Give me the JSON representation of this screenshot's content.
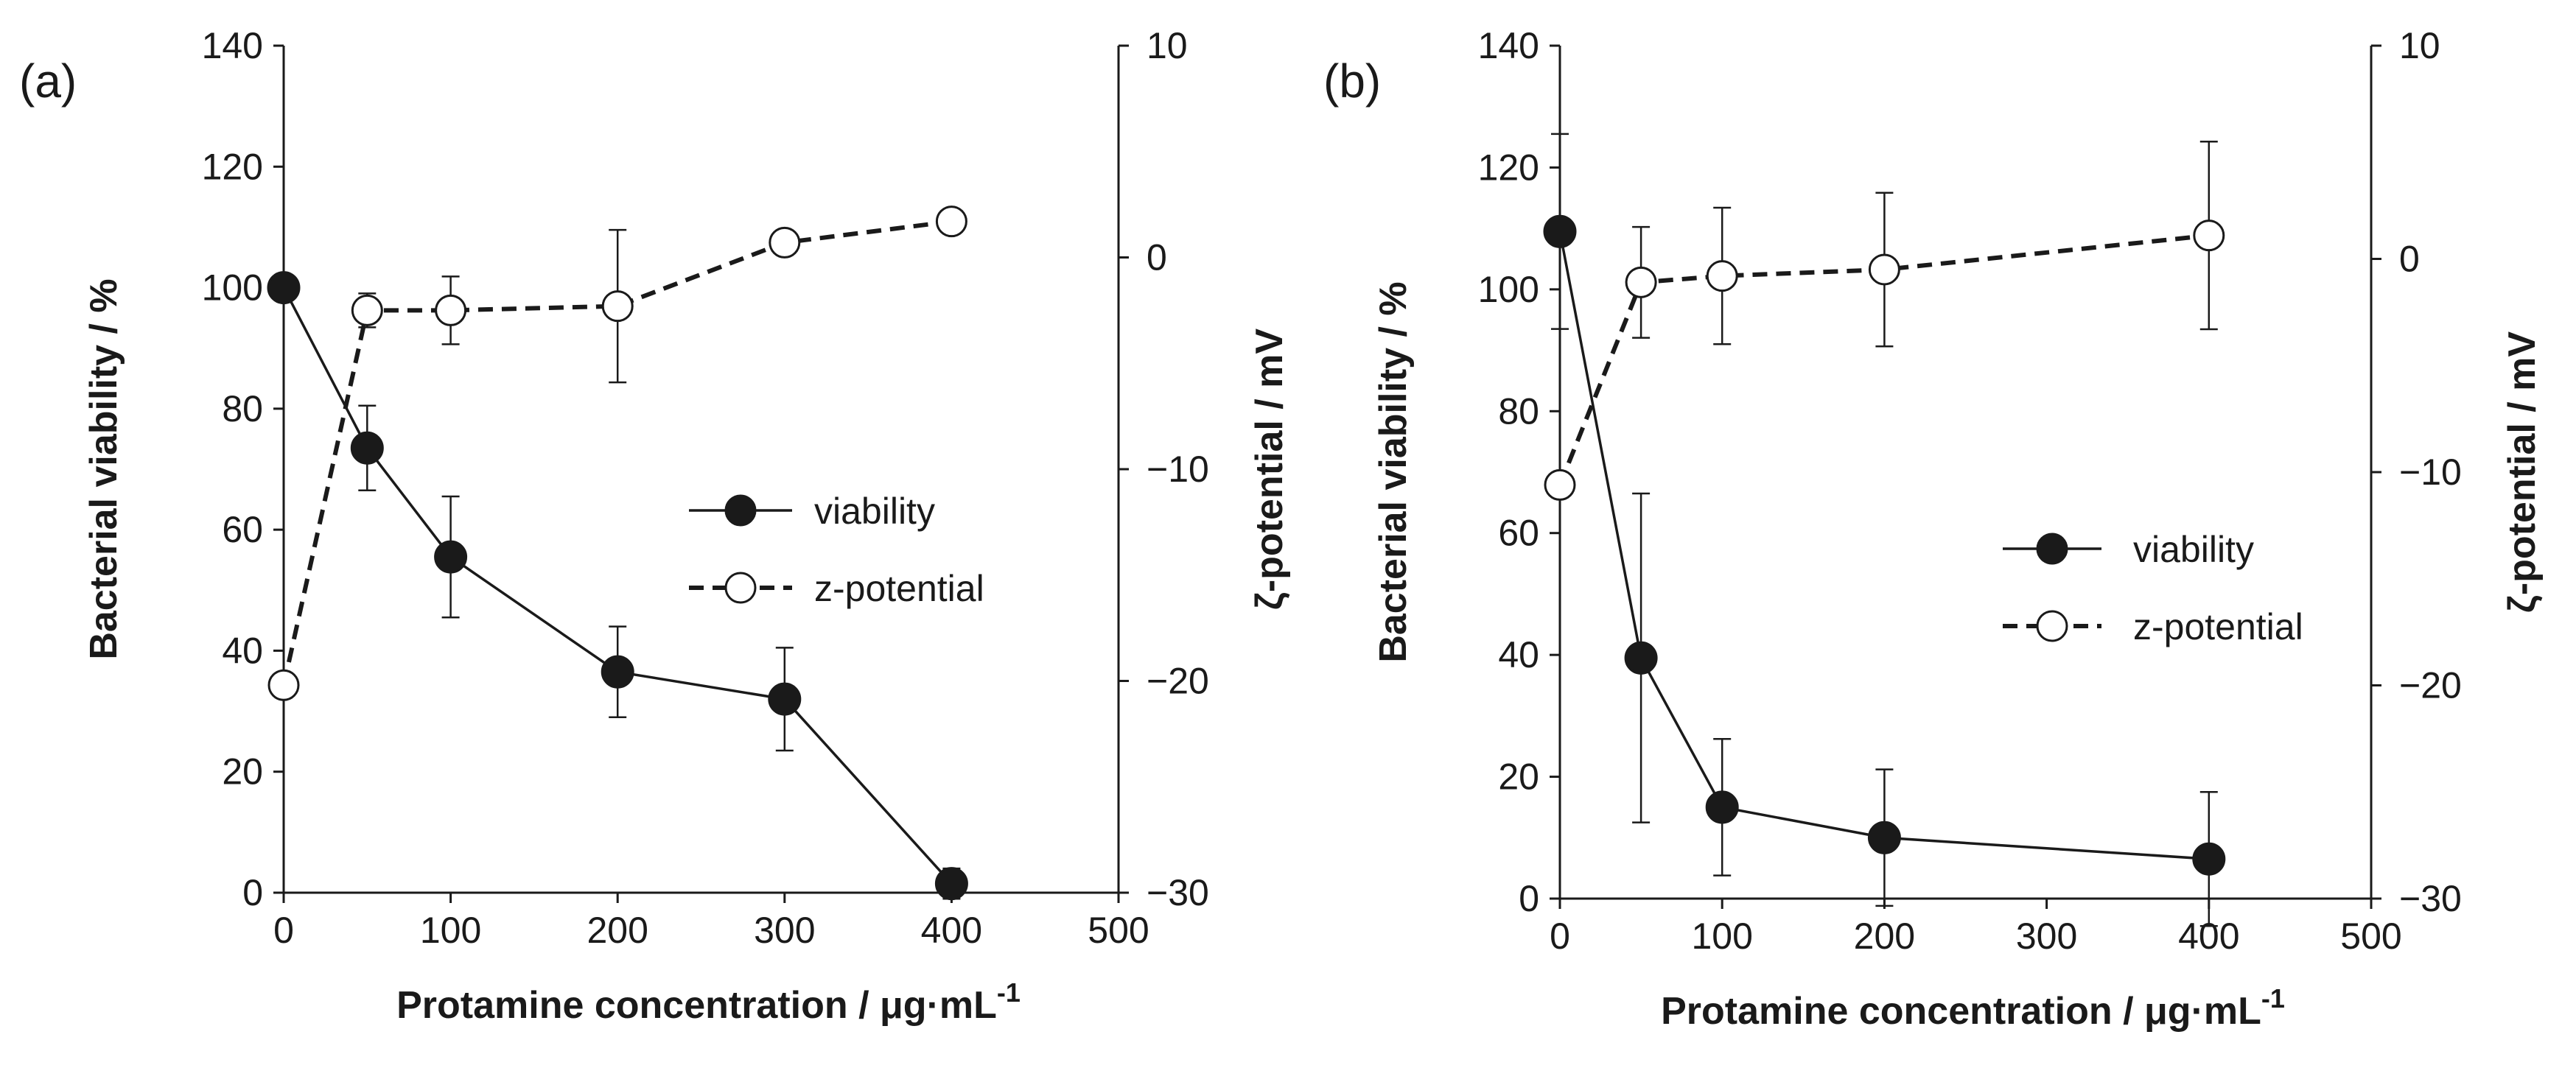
{
  "figure": {
    "background": "#ffffff",
    "ink": "#1a1a1a"
  },
  "chart_data": [
    {
      "type": "line",
      "panel_label": "(a)",
      "xlabel": "Protamine concentration / μg·mL",
      "xlabel_superscript": "-1",
      "ylabel_left": "Bacterial viability / %",
      "ylabel_right": "ζ-potential / mV",
      "xlim": [
        0,
        500
      ],
      "xticks": [
        0,
        100,
        200,
        300,
        400,
        500
      ],
      "ylim_left": [
        0,
        140
      ],
      "yticks_left": [
        0,
        20,
        40,
        60,
        80,
        100,
        120,
        140
      ],
      "ylim_right": [
        -30,
        10
      ],
      "yticks_right": [
        -30,
        -20,
        -10,
        0,
        10
      ],
      "grid": false,
      "legend_position": "center-right",
      "series": [
        {
          "name": "viability",
          "axis": "left",
          "marker": "filled-circle",
          "line": "solid",
          "x": [
            0,
            50,
            100,
            200,
            300,
            400
          ],
          "y": [
            100,
            73.5,
            55.5,
            36.5,
            32,
            1.5
          ],
          "err": [
            0,
            7,
            10,
            7.5,
            8.5,
            2.5
          ]
        },
        {
          "name": "z-potential",
          "axis": "right",
          "marker": "open-circle",
          "line": "dashed",
          "x": [
            0,
            50,
            100,
            200,
            300,
            400
          ],
          "y": [
            -20.2,
            -2.5,
            -2.5,
            -2.3,
            0.7,
            1.7
          ],
          "err": [
            0,
            0.8,
            1.6,
            3.6,
            0,
            0
          ]
        }
      ]
    },
    {
      "type": "line",
      "panel_label": "(b)",
      "xlabel": "Protamine concentration / μg·mL",
      "xlabel_superscript": "-1",
      "ylabel_left": "Bacterial viability / %",
      "ylabel_right": "ζ-potential / mV",
      "xlim": [
        0,
        500
      ],
      "xticks": [
        0,
        100,
        200,
        300,
        400,
        500
      ],
      "ylim_left": [
        0,
        140
      ],
      "yticks_left": [
        0,
        20,
        40,
        60,
        80,
        100,
        120,
        140
      ],
      "ylim_right": [
        -30,
        10
      ],
      "yticks_right": [
        -30,
        -20,
        -10,
        0,
        10
      ],
      "grid": false,
      "legend_position": "center-right",
      "series": [
        {
          "name": "viability",
          "axis": "left",
          "marker": "filled-circle",
          "line": "solid",
          "x": [
            0,
            50,
            100,
            200,
            400
          ],
          "y": [
            109.5,
            39.5,
            15,
            10,
            6.5
          ],
          "err": [
            16,
            27,
            11.2,
            11.2,
            11
          ]
        },
        {
          "name": "z-potential",
          "axis": "right",
          "marker": "open-circle",
          "line": "dashed",
          "x": [
            0,
            50,
            100,
            200,
            400
          ],
          "y": [
            -10.6,
            -1.1,
            -0.8,
            -0.5,
            1.1
          ],
          "err": [
            0,
            2.6,
            3.2,
            3.6,
            4.4
          ]
        }
      ]
    }
  ]
}
